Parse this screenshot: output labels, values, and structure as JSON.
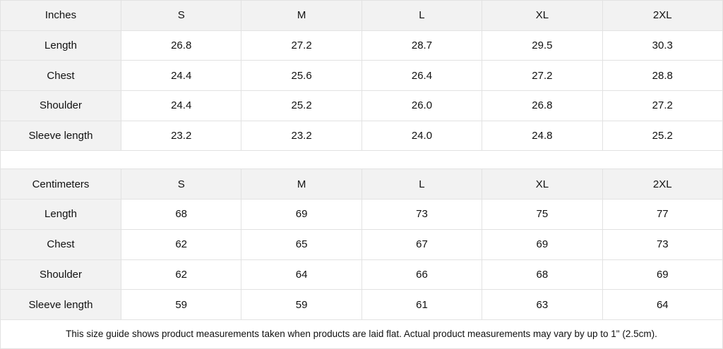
{
  "inches": {
    "header": [
      "Inches",
      "S",
      "M",
      "L",
      "XL",
      "2XL"
    ],
    "rows": [
      [
        "Length",
        "26.8",
        "27.2",
        "28.7",
        "29.5",
        "30.3"
      ],
      [
        "Chest",
        "24.4",
        "25.6",
        "26.4",
        "27.2",
        "28.8"
      ],
      [
        "Shoulder",
        "24.4",
        "25.2",
        "26.0",
        "26.8",
        "27.2"
      ],
      [
        "Sleeve length",
        "23.2",
        "23.2",
        "24.0",
        "24.8",
        "25.2"
      ]
    ]
  },
  "centimeters": {
    "header": [
      "Centimeters",
      "S",
      "M",
      "L",
      "XL",
      "2XL"
    ],
    "rows": [
      [
        "Length",
        "68",
        "69",
        "73",
        "75",
        "77"
      ],
      [
        "Chest",
        "62",
        "65",
        "67",
        "69",
        "73"
      ],
      [
        "Shoulder",
        "62",
        "64",
        "66",
        "68",
        "69"
      ],
      [
        "Sleeve length",
        "59",
        "59",
        "61",
        "63",
        "64"
      ]
    ]
  },
  "footnote": "This size guide shows product measurements taken when products are laid flat.  Actual product measurements may vary by up to 1\" (2.5cm)."
}
